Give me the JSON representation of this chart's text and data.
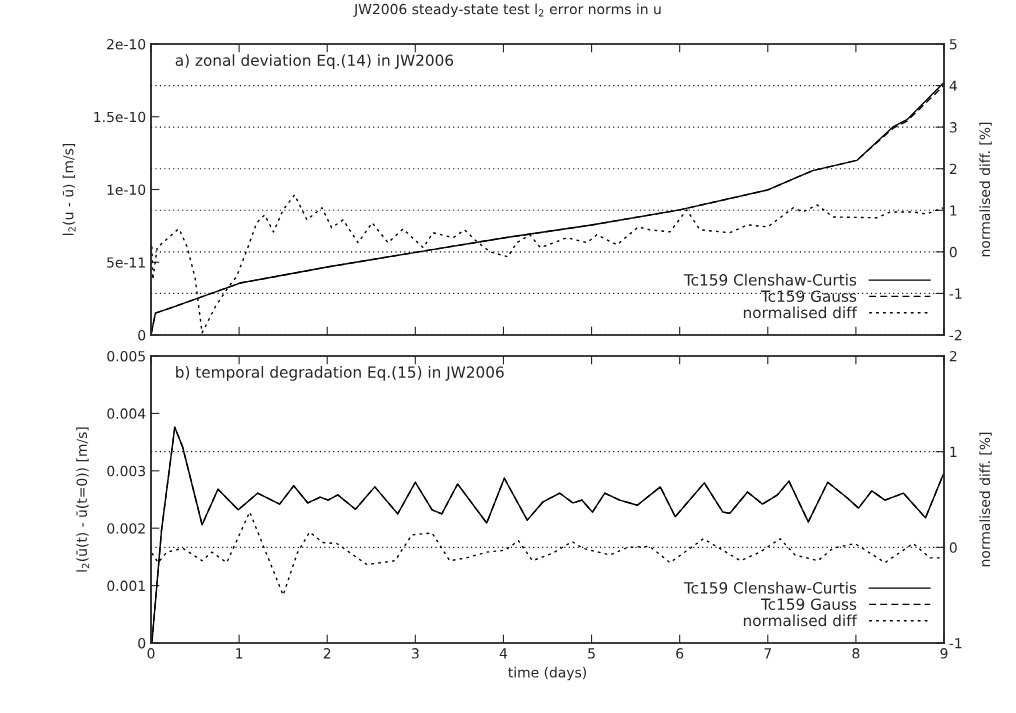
{
  "chart_data": [
    {
      "type": "line",
      "title": "JW2006 steady-state test l$_{2}$ error norms in u",
      "ylabel": "l$_{2}$(u - ū) [m/s]",
      "y2label": "normalised diff. [%]",
      "annotations": [
        "a) zonal deviation Eq.(14) in JW2006"
      ],
      "xlim": [
        0,
        9
      ],
      "xticks": [
        0,
        1,
        2,
        3,
        4,
        5,
        6,
        7,
        8,
        9
      ],
      "ylim": [
        0,
        2e-10
      ],
      "yticks": [
        0,
        {
          "value": 5e-11,
          "label": "5e-11"
        },
        {
          "value": 1e-10,
          "label": "1e-10"
        },
        {
          "value": 1.5e-10,
          "label": "1.5e-10"
        },
        {
          "value": 2e-10,
          "label": "2e-10"
        }
      ],
      "y2lim": [
        -2,
        5
      ],
      "y2ticks": [
        -2,
        -1,
        0,
        1,
        2,
        3,
        4,
        5
      ],
      "grid": "y2",
      "legend": "bottom right",
      "tick_labels": "y",
      "series": [
        {
          "name": "Tc159 Clenshaw-Curtis",
          "color": "#000000",
          "line_style": "solid",
          "x": [
            0,
            0.05,
            0.25,
            1.01,
            2.0,
            3.02,
            4.0,
            5.0,
            6.0,
            7.0,
            7.51,
            8.01,
            8.42,
            8.58,
            8.99
          ],
          "values": [
            0,
            1.5e-11,
            1.92e-11,
            3.57e-11,
            4.67e-11,
            5.7e-11,
            6.67e-11,
            7.56e-11,
            8.6e-11,
            9.97e-11,
            1.13e-10,
            1.2e-10,
            1.43e-10,
            1.48e-10,
            1.73e-10
          ]
        },
        {
          "name": "Tc159 Gauss",
          "color": "#000000",
          "line_style": "dashed",
          "x": [
            0,
            0.05,
            0.25,
            1.01,
            2.0,
            3.02,
            4.0,
            5.0,
            6.0,
            7.0,
            7.51,
            8.01,
            8.42,
            8.58,
            8.99
          ],
          "values": [
            0,
            1.5e-11,
            1.92e-11,
            3.57e-11,
            4.67e-11,
            5.7e-11,
            6.67e-11,
            7.56e-11,
            8.6e-11,
            9.97e-11,
            1.13e-10,
            1.2e-10,
            1.42e-10,
            1.47e-10,
            1.71e-10
          ]
        },
        {
          "name": "normalised diff",
          "color": "#000000",
          "line_style": "dotted",
          "axis": "y2",
          "x": [
            0.01,
            0.02,
            0.07,
            0.3,
            0.32,
            0.41,
            0.5,
            0.58,
            0.73,
            0.88,
            0.97,
            1.09,
            1.2,
            1.29,
            1.39,
            1.5,
            1.63,
            1.77,
            1.94,
            2.05,
            2.18,
            2.35,
            2.51,
            2.69,
            2.86,
            3.09,
            3.2,
            3.43,
            3.56,
            3.7,
            3.85,
            4.05,
            4.15,
            4.3,
            4.42,
            4.72,
            4.95,
            5.06,
            5.29,
            5.53,
            5.66,
            5.89,
            6.08,
            6.23,
            6.57,
            6.77,
            7.0,
            7.29,
            7.4,
            7.56,
            7.74,
            8.24,
            8.39,
            8.65,
            8.8,
            8.99
          ],
          "values": [
            0.13,
            -0.67,
            0.1,
            0.53,
            0.55,
            0.12,
            -0.62,
            -1.95,
            -1.32,
            -0.84,
            -0.6,
            0.05,
            0.7,
            0.89,
            0.48,
            1.01,
            1.37,
            0.77,
            1.06,
            0.58,
            0.77,
            0.22,
            0.7,
            0.22,
            0.55,
            0.1,
            0.46,
            0.34,
            0.53,
            0.24,
            0,
            -0.12,
            0.22,
            0.41,
            0.1,
            0.34,
            0.22,
            0.41,
            0.17,
            0.6,
            0.53,
            0.48,
            1.01,
            0.53,
            0.46,
            0.65,
            0.6,
            1.06,
            0.96,
            1.13,
            0.84,
            0.82,
            0.96,
            0.96,
            0.91,
            1.06
          ]
        }
      ]
    },
    {
      "type": "line",
      "xlabel": "time (days)",
      "ylabel": "l$_{2}$(ū(t) - ū(t=0)) [m/s]",
      "y2label": "normalised diff. [%]",
      "annotations": [
        "b) temporal degradation Eq.(15) in JW2006"
      ],
      "xlim": [
        0,
        9
      ],
      "xticks": [
        0,
        1,
        2,
        3,
        4,
        5,
        6,
        7,
        8,
        9
      ],
      "ylim": [
        0,
        0.005
      ],
      "yticks": [
        0,
        0.001,
        0.002,
        0.003,
        0.004,
        0.005
      ],
      "y2lim": [
        -1,
        2
      ],
      "y2ticks": [
        -1,
        0,
        1,
        2
      ],
      "grid": "y2",
      "legend": "bottom right",
      "series": [
        {
          "name": "Tc159 Clenshaw-Curtis",
          "color": "#000000",
          "line_style": "solid",
          "x": [
            0.01,
            0.12,
            0.27,
            0.36,
            0.58,
            0.76,
            0.99,
            1.21,
            1.46,
            1.62,
            1.78,
            1.92,
            2.01,
            2.12,
            2.32,
            2.54,
            2.8,
            3.0,
            3.19,
            3.3,
            3.48,
            3.81,
            4.01,
            4.27,
            4.45,
            4.64,
            4.79,
            4.89,
            5.01,
            5.15,
            5.32,
            5.52,
            5.78,
            5.95,
            6.28,
            6.49,
            6.57,
            6.77,
            6.94,
            7.11,
            7.24,
            7.46,
            7.68,
            7.9,
            8.03,
            8.18,
            8.33,
            8.54,
            8.79,
            8.99
          ],
          "values": [
            0,
            0.00197,
            0.00376,
            0.00341,
            0.00206,
            0.00268,
            0.00232,
            0.00261,
            0.00242,
            0.00274,
            0.00244,
            0.00254,
            0.00249,
            0.00258,
            0.00233,
            0.00272,
            0.00225,
            0.0028,
            0.00232,
            0.00225,
            0.00277,
            0.00209,
            0.00287,
            0.00214,
            0.00246,
            0.00261,
            0.00244,
            0.00249,
            0.00228,
            0.00261,
            0.00249,
            0.0024,
            0.00272,
            0.0022,
            0.00279,
            0.00228,
            0.00226,
            0.00263,
            0.00242,
            0.00258,
            0.00282,
            0.00211,
            0.0028,
            0.00253,
            0.00235,
            0.00265,
            0.00249,
            0.00261,
            0.00218,
            0.00293
          ]
        },
        {
          "name": "Tc159 Gauss",
          "color": "#000000",
          "line_style": "dashed",
          "x": [
            0.01,
            0.12,
            0.27,
            0.36,
            0.58,
            0.76,
            0.99,
            1.21,
            1.46,
            1.62,
            1.78,
            1.92,
            2.01,
            2.12,
            2.32,
            2.54,
            2.8,
            3.0,
            3.19,
            3.3,
            3.48,
            3.81,
            4.01,
            4.27,
            4.45,
            4.64,
            4.79,
            4.89,
            5.01,
            5.15,
            5.32,
            5.52,
            5.78,
            5.95,
            6.28,
            6.49,
            6.57,
            6.77,
            6.94,
            7.11,
            7.24,
            7.46,
            7.68,
            7.9,
            8.03,
            8.18,
            8.33,
            8.54,
            8.79,
            8.99
          ],
          "values": [
            0,
            0.00197,
            0.00376,
            0.00341,
            0.00206,
            0.00268,
            0.00232,
            0.00261,
            0.00242,
            0.00274,
            0.00244,
            0.00254,
            0.00249,
            0.00258,
            0.00233,
            0.00272,
            0.00225,
            0.0028,
            0.00232,
            0.00225,
            0.00277,
            0.00209,
            0.00287,
            0.00214,
            0.00246,
            0.00261,
            0.00244,
            0.00249,
            0.00228,
            0.00261,
            0.00249,
            0.0024,
            0.00272,
            0.0022,
            0.00279,
            0.00228,
            0.00226,
            0.00263,
            0.00242,
            0.00258,
            0.00282,
            0.00211,
            0.0028,
            0.00253,
            0.00235,
            0.00265,
            0.00249,
            0.00261,
            0.00218,
            0.00293
          ]
        },
        {
          "name": "normalised diff",
          "color": "#000000",
          "line_style": "dotted",
          "axis": "y2",
          "x": [
            0.01,
            0.08,
            0.18,
            0.36,
            0.58,
            0.69,
            0.86,
            1.12,
            1.5,
            1.66,
            1.8,
            1.95,
            2.11,
            2.45,
            2.77,
            2.96,
            3.19,
            3.39,
            3.58,
            3.81,
            4.02,
            4.17,
            4.33,
            4.56,
            4.78,
            4.9,
            5.21,
            5.41,
            5.66,
            5.89,
            6.27,
            6.69,
            6.91,
            7.14,
            7.31,
            7.57,
            7.74,
            7.99,
            8.33,
            8.65,
            8.84,
            8.99
          ],
          "values": [
            -0.06,
            -0.16,
            -0.05,
            -0.01,
            -0.14,
            -0.05,
            -0.16,
            0.37,
            -0.5,
            -0.06,
            0.16,
            0.05,
            0.04,
            -0.18,
            -0.14,
            0.13,
            0.15,
            -0.14,
            -0.11,
            -0.05,
            -0.03,
            0.07,
            -0.14,
            -0.06,
            0.06,
            -0.01,
            -0.08,
            0,
            0.01,
            -0.16,
            0.09,
            -0.14,
            -0.05,
            0.09,
            -0.08,
            -0.14,
            -0.01,
            0.04,
            -0.16,
            0.04,
            -0.11,
            -0.11
          ]
        }
      ]
    }
  ]
}
